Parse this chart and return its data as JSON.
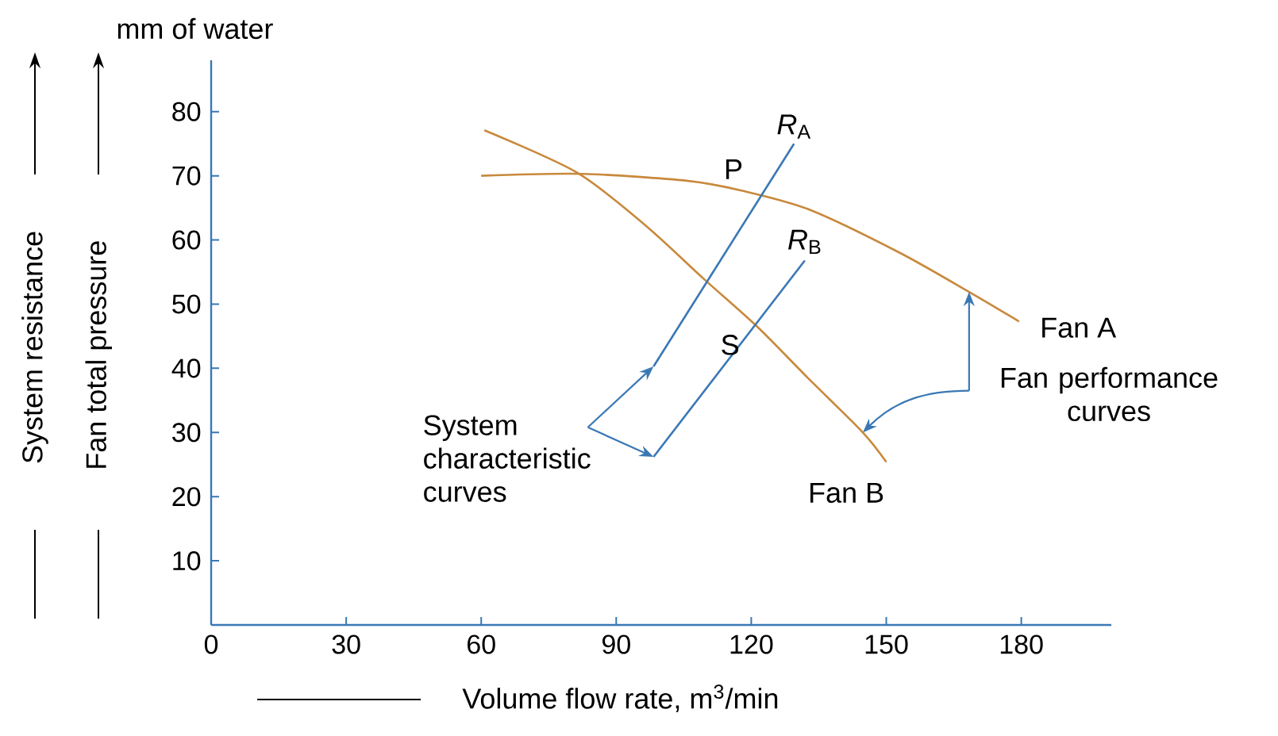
{
  "chart_data": {
    "type": "line",
    "xlabel": "Volume flow rate, m$^{3}$/min",
    "ylabel": "Fan total pressure",
    "xlim": [
      0,
      200
    ],
    "ylim": [
      0,
      88
    ],
    "xticks": [
      0,
      30,
      60,
      90,
      120,
      150,
      180
    ],
    "yticks": [
      10,
      20,
      30,
      40,
      50,
      60,
      70,
      80
    ],
    "grid": false,
    "marker": "none",
    "line_style": "solid",
    "series": [
      {
        "color": "#c8893c",
        "x": [
          60,
          82.5,
          106,
          117.8,
          133,
          153,
          168.4,
          179.5
        ],
        "values": [
          70,
          70.3,
          69.2,
          67.7,
          64.7,
          58,
          51.9,
          47.3
        ]
      },
      {
        "color": "#c8893c",
        "x": [
          60.7,
          81.3,
          96.6,
          109.5,
          121.3,
          133,
          144.8,
          150
        ],
        "values": [
          77.1,
          70.5,
          62.2,
          53.9,
          46.5,
          38.2,
          30,
          25.4
        ]
      },
      {
        "color": "#3a78b5",
        "x": [
          98.3,
          129.5
        ],
        "values": [
          40.3,
          75
        ]
      },
      {
        "color": "#3a78b5",
        "x": [
          98.3,
          131.9
        ],
        "values": [
          26.2,
          56.8
        ]
      }
    ],
    "annotations": [
      "mm of water",
      "System resistance",
      {
        "text": "*R*$_{A}$",
        "x": 129.5,
        "y": 75
      },
      {
        "text": "P",
        "x": 120,
        "y": 67.7
      },
      {
        "text": "*R*$_{B}$",
        "x": 131.9,
        "y": 56.8
      },
      {
        "text": "S",
        "x": 121,
        "y": 47
      },
      {
        "text": "Fan A",
        "x": 179.5,
        "y": 47.3
      },
      {
        "text": "Fan B",
        "x": 150,
        "y": 25.4
      },
      "System characteristic curves",
      "Fan performance curves"
    ]
  }
}
